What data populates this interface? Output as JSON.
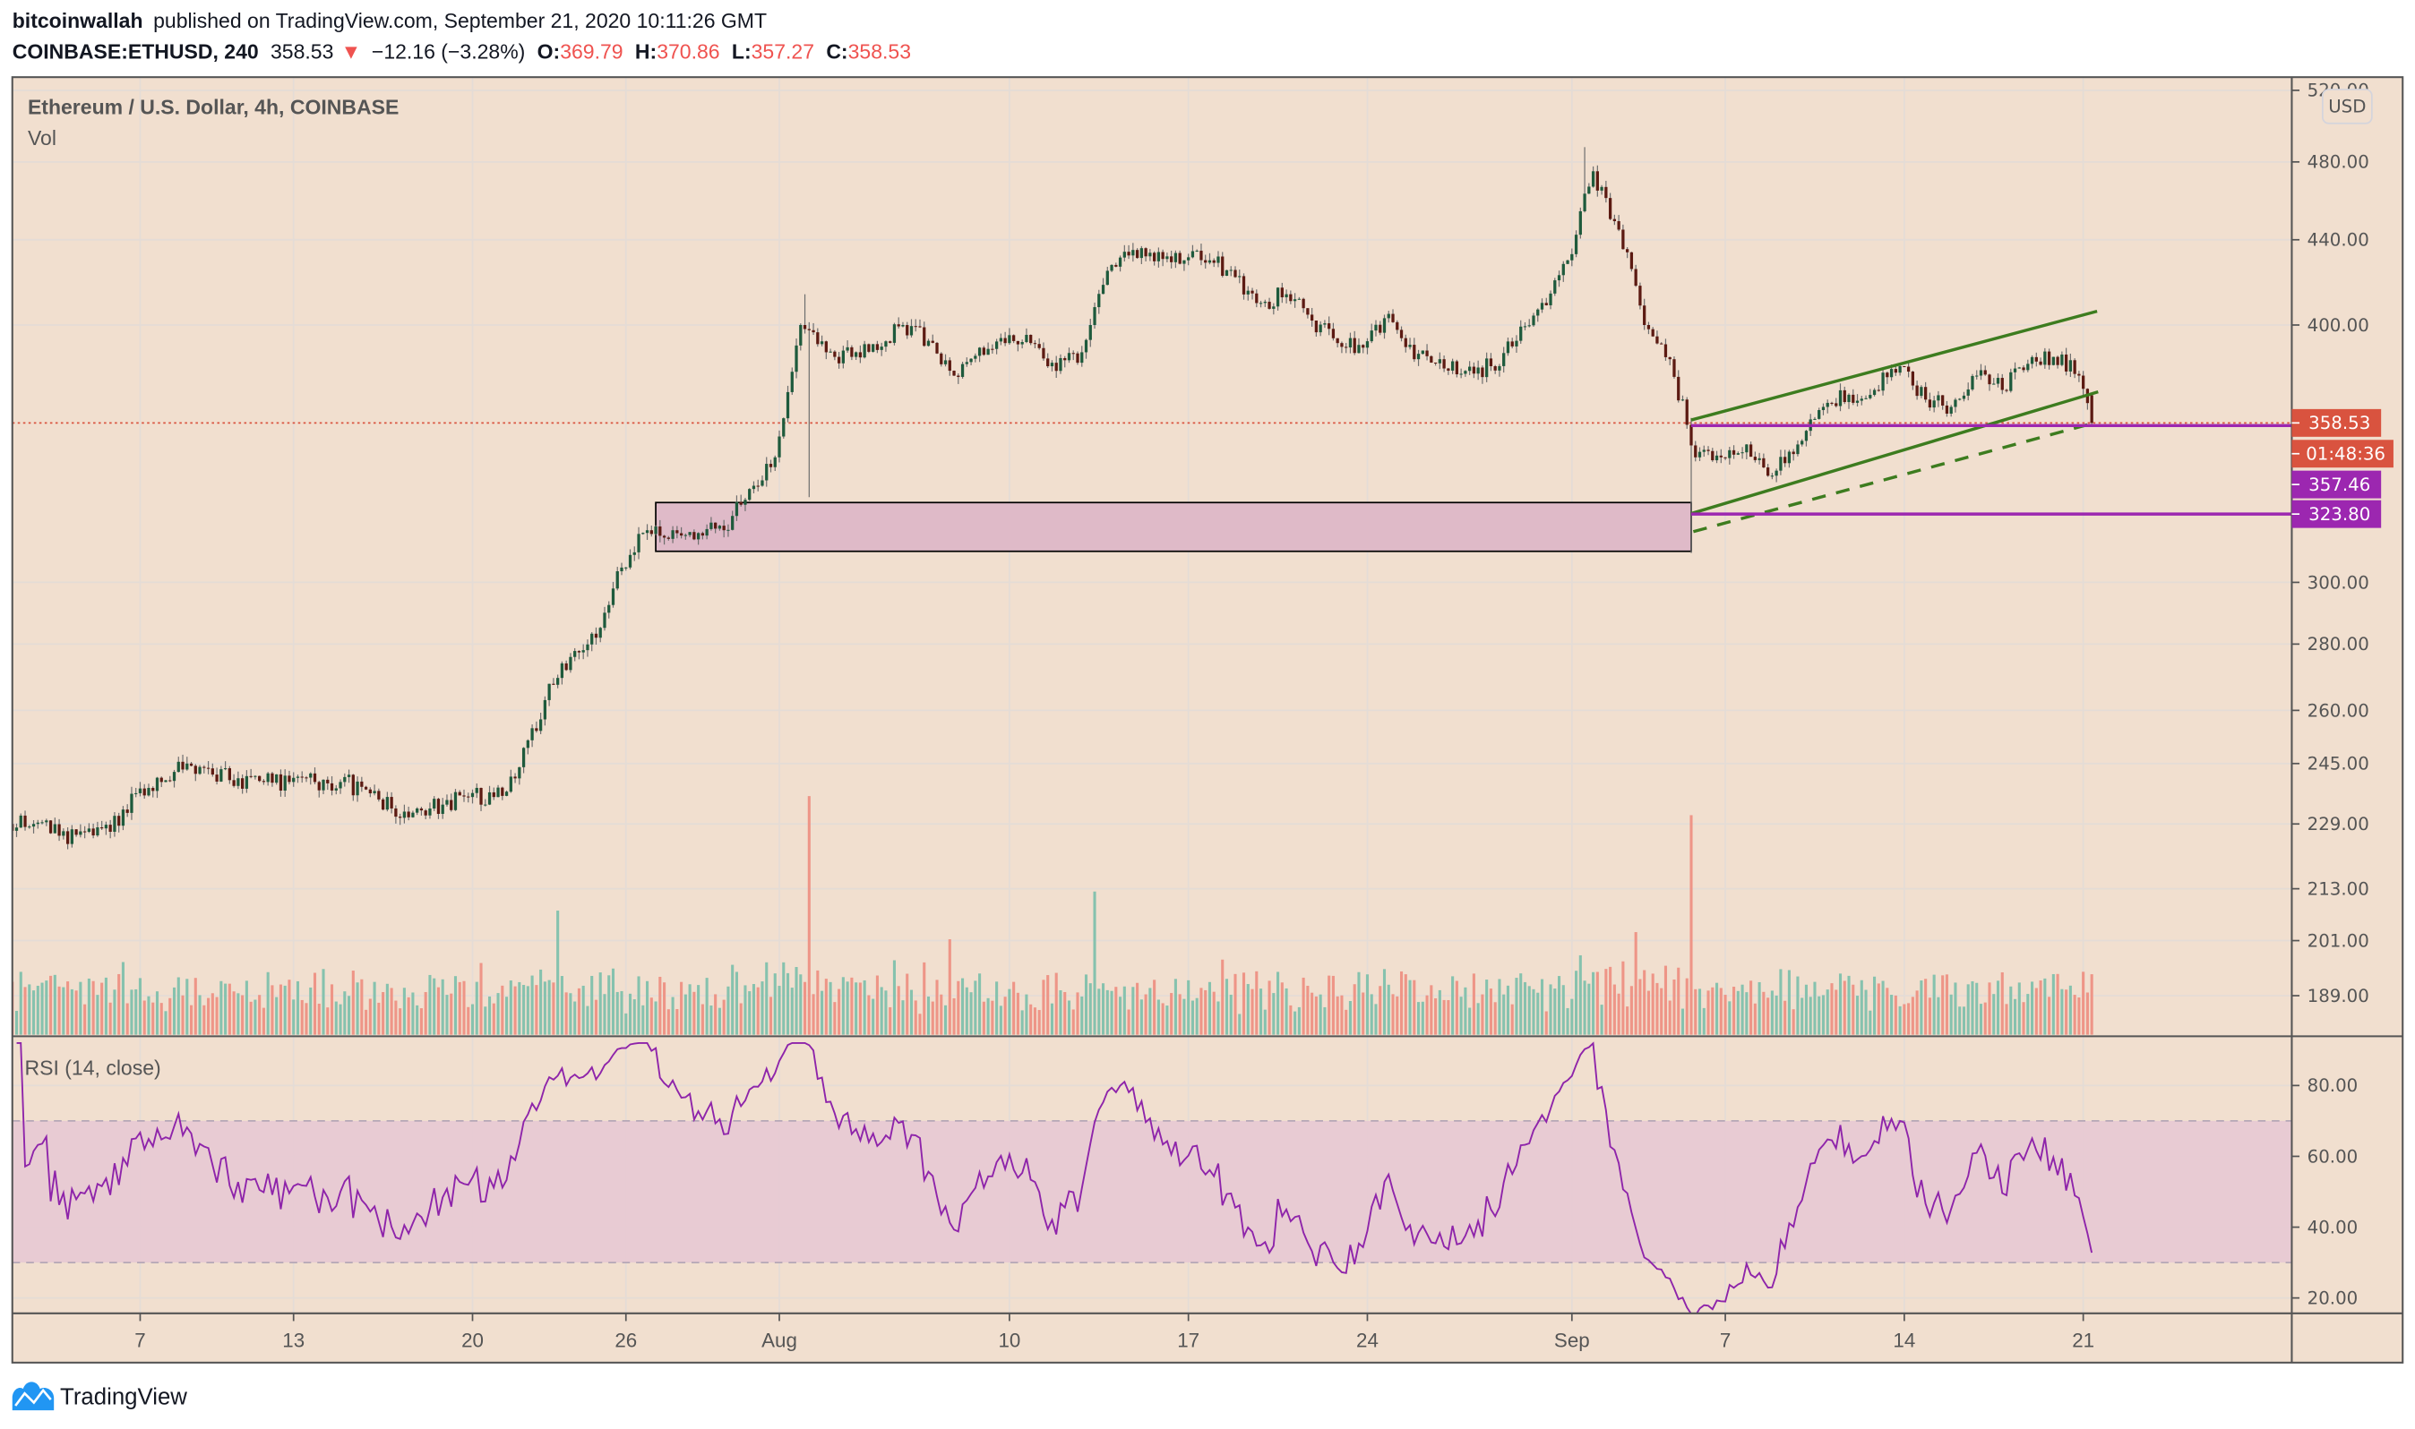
{
  "header": {
    "author": "bitcoinwallah",
    "published_text": "published on TradingView.com, September 21, 2020 10:11:26 GMT",
    "symbol": "COINBASE:ETHUSD, 240",
    "last": "358.53",
    "change_arrow": "▼",
    "change": "−12.16 (−3.28%)",
    "o_label": "O:",
    "o": "369.79",
    "h_label": "H:",
    "h": "370.86",
    "l_label": "L:",
    "l": "357.27",
    "c_label": "C:",
    "c": "358.53"
  },
  "legend": {
    "title": "Ethereum / U.S. Dollar, 4h, COINBASE",
    "volume": "Vol",
    "rsi": "RSI (14, close)"
  },
  "currency_button": "USD",
  "footer": {
    "brand": "TradingView"
  },
  "colors": {
    "background": "#f1dfcf",
    "up": "#1e5a3c",
    "down": "#5c1a12",
    "volume_up": "#86c2ae",
    "volume_down": "#ee9587",
    "rsi_line": "#8e24aa",
    "rsi_band": "#e7c9d3",
    "zone_fill": "#dfbac8",
    "channel": "#3d7c1f",
    "level": "#9c27b0",
    "last_price": "#d9533f",
    "brand_blue": "#2196f3"
  },
  "chart_data": {
    "type": "candlestick",
    "interval": "4h",
    "scale": "log",
    "grid": true,
    "ylim": [
      180,
      520
    ],
    "price_ticks": [
      "520.00",
      "480.00",
      "440.00",
      "400.00",
      "300.00",
      "280.00",
      "260.00",
      "245.00",
      "229.00",
      "213.00",
      "201.00",
      "189.00"
    ],
    "rsi_ticks": [
      "80.00",
      "60.00",
      "40.00",
      "20.00"
    ],
    "rsi_period": 14,
    "rsi_band": [
      30,
      70
    ],
    "time_ticks": [
      {
        "label": "7",
        "date": "2020-07-07"
      },
      {
        "label": "13",
        "date": "2020-07-13"
      },
      {
        "label": "20",
        "date": "2020-07-20"
      },
      {
        "label": "26",
        "date": "2020-07-26"
      },
      {
        "label": "Aug",
        "date": "2020-08-01"
      },
      {
        "label": "10",
        "date": "2020-08-10"
      },
      {
        "label": "17",
        "date": "2020-08-17"
      },
      {
        "label": "24",
        "date": "2020-08-24"
      },
      {
        "label": "Sep",
        "date": "2020-09-01"
      },
      {
        "label": "7",
        "date": "2020-09-07"
      },
      {
        "label": "14",
        "date": "2020-09-14"
      },
      {
        "label": "21",
        "date": "2020-09-21"
      }
    ],
    "daily_close": [
      [
        "2020-07-02",
        229
      ],
      [
        "2020-07-03",
        226
      ],
      [
        "2020-07-04",
        227
      ],
      [
        "2020-07-05",
        227
      ],
      [
        "2020-07-06",
        237
      ],
      [
        "2020-07-07",
        240
      ],
      [
        "2020-07-08",
        245
      ],
      [
        "2020-07-09",
        242
      ],
      [
        "2020-07-10",
        241
      ],
      [
        "2020-07-11",
        240
      ],
      [
        "2020-07-12",
        240
      ],
      [
        "2020-07-13",
        240
      ],
      [
        "2020-07-14",
        240
      ],
      [
        "2020-07-15",
        238
      ],
      [
        "2020-07-16",
        233
      ],
      [
        "2020-07-17",
        233
      ],
      [
        "2020-07-18",
        234
      ],
      [
        "2020-07-19",
        236
      ],
      [
        "2020-07-20",
        236
      ],
      [
        "2020-07-21",
        244
      ],
      [
        "2020-07-22",
        263
      ],
      [
        "2020-07-23",
        276
      ],
      [
        "2020-07-24",
        282
      ],
      [
        "2020-07-25",
        305
      ],
      [
        "2020-07-26",
        318
      ],
      [
        "2020-07-27",
        318
      ],
      [
        "2020-07-28",
        317
      ],
      [
        "2020-07-29",
        318
      ],
      [
        "2020-07-30",
        333
      ],
      [
        "2020-07-31",
        345
      ],
      [
        "2020-08-01",
        400
      ],
      [
        "2020-08-02",
        388
      ],
      [
        "2020-08-03",
        386
      ],
      [
        "2020-08-04",
        389
      ],
      [
        "2020-08-05",
        400
      ],
      [
        "2020-08-06",
        393
      ],
      [
        "2020-08-07",
        378
      ],
      [
        "2020-08-08",
        390
      ],
      [
        "2020-08-09",
        392
      ],
      [
        "2020-08-10",
        392
      ],
      [
        "2020-08-11",
        380
      ],
      [
        "2020-08-12",
        388
      ],
      [
        "2020-08-13",
        425
      ],
      [
        "2020-08-14",
        435
      ],
      [
        "2020-08-15",
        434
      ],
      [
        "2020-08-16",
        430
      ],
      [
        "2020-08-17",
        430
      ],
      [
        "2020-08-18",
        422
      ],
      [
        "2020-08-19",
        410
      ],
      [
        "2020-08-20",
        414
      ],
      [
        "2020-08-21",
        402
      ],
      [
        "2020-08-22",
        392
      ],
      [
        "2020-08-23",
        390
      ],
      [
        "2020-08-24",
        405
      ],
      [
        "2020-08-25",
        385
      ],
      [
        "2020-08-26",
        385
      ],
      [
        "2020-08-27",
        380
      ],
      [
        "2020-08-28",
        382
      ],
      [
        "2020-08-29",
        393
      ],
      [
        "2020-08-30",
        410
      ],
      [
        "2020-08-31",
        430
      ],
      [
        "2020-09-01",
        475
      ],
      [
        "2020-09-02",
        445
      ],
      [
        "2020-09-03",
        400
      ],
      [
        "2020-09-04",
        385
      ],
      [
        "2020-09-05",
        345
      ],
      [
        "2020-09-06",
        345
      ],
      [
        "2020-09-07",
        350
      ],
      [
        "2020-09-08",
        338
      ],
      [
        "2020-09-09",
        350
      ],
      [
        "2020-09-10",
        365
      ],
      [
        "2020-09-11",
        370
      ],
      [
        "2020-09-12",
        372
      ],
      [
        "2020-09-13",
        382
      ],
      [
        "2020-09-14",
        368
      ],
      [
        "2020-09-15",
        365
      ],
      [
        "2020-09-16",
        378
      ],
      [
        "2020-09-17",
        372
      ],
      [
        "2020-09-18",
        383
      ],
      [
        "2020-09-19",
        386
      ],
      [
        "2020-09-20",
        378
      ],
      [
        "2020-09-21",
        358.53
      ]
    ],
    "wick_extremes": [
      {
        "time": "2020-08-02T00:00",
        "high": 414
      },
      {
        "time": "2020-08-02T04:00",
        "low": 330
      },
      {
        "time": "2020-09-01T12:00",
        "high": 488
      },
      {
        "time": "2020-09-05T16:00",
        "low": 310
      }
    ],
    "volume_spikes": [
      {
        "time": "2020-08-02T04:00",
        "relative": 1.0
      },
      {
        "time": "2020-09-05T16:00",
        "relative": 0.92
      },
      {
        "time": "2020-08-13T08:00",
        "relative": 0.6
      },
      {
        "time": "2020-07-23T08:00",
        "relative": 0.52
      },
      {
        "time": "2020-08-07T16:00",
        "relative": 0.4
      },
      {
        "time": "2020-09-03T12:00",
        "relative": 0.43
      }
    ],
    "last_price": {
      "value": "358.53",
      "countdown": "01:48:36"
    },
    "levels": [
      {
        "value": "357.46",
        "from": "2020-09-05T16:00"
      },
      {
        "value": "323.80",
        "from": "2020-09-05T16:00"
      }
    ],
    "annotations": {
      "zone": {
        "from": "2020-07-27T04:00",
        "to": "2020-09-05T16:00",
        "top": 328,
        "bottom": 310.6
      },
      "channel_upper": {
        "from": [
          "2020-09-05T16:00",
          359.7
        ],
        "to": [
          "2020-09-21T13:00",
          406.2
        ]
      },
      "channel_lower": {
        "from": [
          "2020-09-05T16:00",
          324
        ],
        "to": [
          "2020-09-21T14:00",
          371.2
        ]
      },
      "channel_dashed": {
        "from": [
          "2020-09-05T18:00",
          317.5
        ],
        "to": [
          "2020-09-21T10:00",
          358.5
        ]
      }
    }
  }
}
